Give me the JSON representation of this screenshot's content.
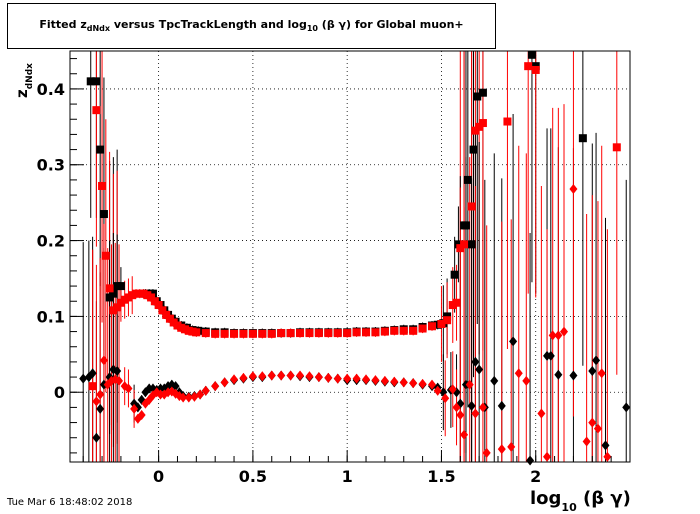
{
  "title": {
    "prefix": "Fitted  z",
    "subscript": "dNdx",
    "middle": "  versus TpcTrackLength and log",
    "log_sub": "10",
    "suffix": " (β γ) for Global muon+"
  },
  "timestamp": "Tue Mar  6 18:48:02 2018",
  "chart_data": {
    "type": "scatter",
    "title": "Fitted z_dNdx versus TpcTrackLength and log10(βγ) for Global muon+",
    "xlabel": "log10(β γ)",
    "ylabel": "z_dNdx",
    "xlim": [
      -0.47,
      2.5
    ],
    "ylim": [
      -0.092,
      0.45
    ],
    "x_ticks": [
      0,
      0.5,
      1,
      1.5,
      2
    ],
    "x_tick_labels": [
      "0",
      "0.5",
      "1",
      "1.5",
      "2"
    ],
    "y_ticks": [
      0,
      0.1,
      0.2,
      0.3,
      0.4
    ],
    "y_tick_labels": [
      "0",
      "0.1",
      "0.2",
      "0.3",
      "0.4"
    ],
    "grid": true,
    "colors": {
      "black": "#000000",
      "red": "#ff0000"
    },
    "series": [
      {
        "marker": "square",
        "color": "#000000",
        "points": [
          [
            -0.36,
            0.41
          ],
          [
            -0.33,
            0.41
          ],
          [
            -0.31,
            0.32
          ],
          [
            -0.29,
            0.235
          ],
          [
            -0.26,
            0.125
          ],
          [
            -0.24,
            0.13
          ],
          [
            -0.22,
            0.14
          ],
          [
            -0.2,
            0.14
          ],
          [
            -0.07,
            0.13
          ],
          [
            -0.05,
            0.13
          ],
          [
            -0.03,
            0.13
          ],
          [
            -0.01,
            0.12
          ],
          [
            0.01,
            0.115
          ],
          [
            0.03,
            0.108
          ],
          [
            0.05,
            0.102
          ],
          [
            0.07,
            0.097
          ],
          [
            0.09,
            0.093
          ],
          [
            0.12,
            0.088
          ],
          [
            0.15,
            0.085
          ],
          [
            0.18,
            0.082
          ],
          [
            0.21,
            0.081
          ],
          [
            0.25,
            0.08
          ],
          [
            0.3,
            0.079
          ],
          [
            0.35,
            0.079
          ],
          [
            0.4,
            0.078
          ],
          [
            0.45,
            0.078
          ],
          [
            0.5,
            0.078
          ],
          [
            0.55,
            0.078
          ],
          [
            0.6,
            0.078
          ],
          [
            0.65,
            0.078
          ],
          [
            0.7,
            0.078
          ],
          [
            0.75,
            0.079
          ],
          [
            0.8,
            0.079
          ],
          [
            0.85,
            0.079
          ],
          [
            0.9,
            0.079
          ],
          [
            0.95,
            0.079
          ],
          [
            1.0,
            0.079
          ],
          [
            1.05,
            0.08
          ],
          [
            1.1,
            0.08
          ],
          [
            1.15,
            0.08
          ],
          [
            1.2,
            0.081
          ],
          [
            1.25,
            0.082
          ],
          [
            1.3,
            0.083
          ],
          [
            1.35,
            0.083
          ],
          [
            1.4,
            0.086
          ],
          [
            1.45,
            0.088
          ],
          [
            1.48,
            0.089
          ],
          [
            1.51,
            0.091
          ],
          [
            1.53,
            0.1
          ],
          [
            1.57,
            0.155
          ],
          [
            1.59,
            0.195
          ],
          [
            1.62,
            0.22
          ],
          [
            1.63,
            0.22
          ],
          [
            1.64,
            0.28
          ],
          [
            1.66,
            0.195
          ],
          [
            1.67,
            0.32
          ],
          [
            1.69,
            0.39
          ],
          [
            1.72,
            0.395
          ],
          [
            1.98,
            0.445
          ],
          [
            2.0,
            0.43
          ],
          [
            2.25,
            0.335
          ]
        ]
      },
      {
        "marker": "square",
        "color": "#ff0000",
        "points": [
          [
            -0.35,
            0.008
          ],
          [
            -0.33,
            0.372
          ],
          [
            -0.3,
            0.272
          ],
          [
            -0.28,
            0.18
          ],
          [
            -0.26,
            0.137
          ],
          [
            -0.24,
            0.108
          ],
          [
            -0.22,
            0.112
          ],
          [
            -0.2,
            0.118
          ],
          [
            -0.18,
            0.122
          ],
          [
            -0.16,
            0.125
          ],
          [
            -0.14,
            0.128
          ],
          [
            -0.12,
            0.13
          ],
          [
            -0.1,
            0.13
          ],
          [
            -0.08,
            0.13
          ],
          [
            -0.06,
            0.128
          ],
          [
            -0.04,
            0.125
          ],
          [
            -0.02,
            0.12
          ],
          [
            0.0,
            0.115
          ],
          [
            0.02,
            0.108
          ],
          [
            0.04,
            0.102
          ],
          [
            0.06,
            0.097
          ],
          [
            0.08,
            0.092
          ],
          [
            0.1,
            0.088
          ],
          [
            0.12,
            0.085
          ],
          [
            0.14,
            0.083
          ],
          [
            0.16,
            0.081
          ],
          [
            0.18,
            0.08
          ],
          [
            0.2,
            0.079
          ],
          [
            0.25,
            0.078
          ],
          [
            0.3,
            0.077
          ],
          [
            0.35,
            0.077
          ],
          [
            0.4,
            0.077
          ],
          [
            0.45,
            0.077
          ],
          [
            0.5,
            0.077
          ],
          [
            0.55,
            0.077
          ],
          [
            0.6,
            0.077
          ],
          [
            0.65,
            0.078
          ],
          [
            0.7,
            0.078
          ],
          [
            0.75,
            0.078
          ],
          [
            0.8,
            0.078
          ],
          [
            0.85,
            0.078
          ],
          [
            0.9,
            0.078
          ],
          [
            0.95,
            0.078
          ],
          [
            1.0,
            0.078
          ],
          [
            1.05,
            0.079
          ],
          [
            1.1,
            0.079
          ],
          [
            1.15,
            0.079
          ],
          [
            1.2,
            0.08
          ],
          [
            1.25,
            0.081
          ],
          [
            1.3,
            0.081
          ],
          [
            1.35,
            0.081
          ],
          [
            1.4,
            0.084
          ],
          [
            1.45,
            0.087
          ],
          [
            1.5,
            0.09
          ],
          [
            1.53,
            0.095
          ],
          [
            1.56,
            0.115
          ],
          [
            1.58,
            0.118
          ],
          [
            1.6,
            0.19
          ],
          [
            1.62,
            0.195
          ],
          [
            1.66,
            0.245
          ],
          [
            1.68,
            0.345
          ],
          [
            1.7,
            0.35
          ],
          [
            1.72,
            0.355
          ],
          [
            1.85,
            0.357
          ],
          [
            1.96,
            0.43
          ],
          [
            2.0,
            0.425
          ],
          [
            2.43,
            0.323
          ]
        ]
      },
      {
        "marker": "diamond",
        "color": "#000000",
        "points": [
          [
            -0.4,
            0.018
          ],
          [
            -0.37,
            0.02
          ],
          [
            -0.35,
            0.025
          ],
          [
            -0.33,
            -0.06
          ],
          [
            -0.31,
            -0.022
          ],
          [
            -0.29,
            0.01
          ],
          [
            -0.26,
            0.02
          ],
          [
            -0.24,
            0.03
          ],
          [
            -0.22,
            0.028
          ],
          [
            -0.13,
            -0.015
          ],
          [
            -0.11,
            -0.02
          ],
          [
            -0.09,
            -0.01
          ],
          [
            -0.07,
            0.0
          ],
          [
            -0.05,
            0.005
          ],
          [
            -0.03,
            0.005
          ],
          [
            -0.01,
            0.003
          ],
          [
            0.01,
            0.005
          ],
          [
            0.03,
            0.005
          ],
          [
            0.05,
            0.008
          ],
          [
            0.07,
            0.01
          ],
          [
            0.09,
            0.008
          ],
          [
            0.11,
            0.0
          ],
          [
            0.13,
            -0.005
          ],
          [
            0.16,
            -0.006
          ],
          [
            0.19,
            -0.005
          ],
          [
            0.22,
            -0.003
          ],
          [
            0.25,
            0.002
          ],
          [
            0.3,
            0.008
          ],
          [
            0.35,
            0.013
          ],
          [
            0.4,
            0.016
          ],
          [
            0.45,
            0.018
          ],
          [
            0.5,
            0.02
          ],
          [
            0.55,
            0.02
          ],
          [
            0.6,
            0.022
          ],
          [
            0.65,
            0.022
          ],
          [
            0.7,
            0.022
          ],
          [
            0.75,
            0.021
          ],
          [
            0.8,
            0.02
          ],
          [
            0.85,
            0.02
          ],
          [
            0.9,
            0.019
          ],
          [
            0.95,
            0.018
          ],
          [
            1.0,
            0.016
          ],
          [
            1.05,
            0.016
          ],
          [
            1.1,
            0.016
          ],
          [
            1.15,
            0.015
          ],
          [
            1.2,
            0.014
          ],
          [
            1.25,
            0.013
          ],
          [
            1.3,
            0.013
          ],
          [
            1.35,
            0.012
          ],
          [
            1.4,
            0.01
          ],
          [
            1.45,
            0.008
          ],
          [
            1.48,
            0.006
          ],
          [
            1.51,
            0.0
          ],
          [
            1.55,
            0.003
          ],
          [
            1.58,
            0.0
          ],
          [
            1.6,
            -0.015
          ],
          [
            1.63,
            0.01
          ],
          [
            1.66,
            -0.018
          ],
          [
            1.68,
            0.04
          ],
          [
            1.7,
            0.03
          ],
          [
            1.73,
            -0.02
          ],
          [
            1.78,
            0.015
          ],
          [
            1.82,
            -0.018
          ],
          [
            1.88,
            0.067
          ],
          [
            1.97,
            -0.09
          ],
          [
            2.06,
            0.048
          ],
          [
            2.08,
            0.048
          ],
          [
            2.12,
            0.023
          ],
          [
            2.2,
            0.022
          ],
          [
            2.3,
            0.028
          ],
          [
            2.32,
            0.042
          ],
          [
            2.37,
            -0.07
          ],
          [
            2.48,
            -0.02
          ]
        ]
      },
      {
        "marker": "diamond",
        "color": "#ff0000",
        "points": [
          [
            -0.35,
            0.008
          ],
          [
            -0.33,
            -0.012
          ],
          [
            -0.31,
            -0.003
          ],
          [
            -0.29,
            0.042
          ],
          [
            -0.27,
            0.01
          ],
          [
            -0.25,
            0.015
          ],
          [
            -0.23,
            0.017
          ],
          [
            -0.21,
            0.015
          ],
          [
            -0.18,
            0.008
          ],
          [
            -0.16,
            0.005
          ],
          [
            -0.13,
            -0.022
          ],
          [
            -0.11,
            -0.035
          ],
          [
            -0.09,
            -0.03
          ],
          [
            -0.07,
            -0.015
          ],
          [
            -0.05,
            -0.01
          ],
          [
            -0.03,
            -0.004
          ],
          [
            -0.01,
            0.0
          ],
          [
            0.01,
            -0.003
          ],
          [
            0.03,
            -0.003
          ],
          [
            0.05,
            0.0
          ],
          [
            0.07,
            0.001
          ],
          [
            0.09,
            -0.002
          ],
          [
            0.11,
            -0.005
          ],
          [
            0.13,
            -0.007
          ],
          [
            0.16,
            -0.007
          ],
          [
            0.19,
            -0.006
          ],
          [
            0.22,
            -0.003
          ],
          [
            0.25,
            0.002
          ],
          [
            0.3,
            0.008
          ],
          [
            0.35,
            0.013
          ],
          [
            0.4,
            0.017
          ],
          [
            0.45,
            0.019
          ],
          [
            0.5,
            0.021
          ],
          [
            0.55,
            0.021
          ],
          [
            0.6,
            0.022
          ],
          [
            0.65,
            0.022
          ],
          [
            0.7,
            0.022
          ],
          [
            0.75,
            0.022
          ],
          [
            0.8,
            0.021
          ],
          [
            0.85,
            0.02
          ],
          [
            0.9,
            0.019
          ],
          [
            0.95,
            0.018
          ],
          [
            1.0,
            0.018
          ],
          [
            1.05,
            0.018
          ],
          [
            1.1,
            0.017
          ],
          [
            1.15,
            0.016
          ],
          [
            1.2,
            0.015
          ],
          [
            1.25,
            0.014
          ],
          [
            1.3,
            0.013
          ],
          [
            1.35,
            0.012
          ],
          [
            1.4,
            0.011
          ],
          [
            1.45,
            0.01
          ],
          [
            1.48,
            0.002
          ],
          [
            1.52,
            -0.008
          ],
          [
            1.56,
            0.004
          ],
          [
            1.58,
            -0.02
          ],
          [
            1.6,
            -0.03
          ],
          [
            1.62,
            -0.056
          ],
          [
            1.65,
            0.01
          ],
          [
            1.68,
            -0.028
          ],
          [
            1.72,
            -0.02
          ],
          [
            1.74,
            -0.08
          ],
          [
            1.82,
            -0.075
          ],
          [
            1.87,
            -0.072
          ],
          [
            1.91,
            0.025
          ],
          [
            1.95,
            0.015
          ],
          [
            2.03,
            -0.028
          ],
          [
            2.06,
            -0.085
          ],
          [
            2.09,
            0.075
          ],
          [
            2.12,
            0.075
          ],
          [
            2.15,
            0.08
          ],
          [
            2.2,
            0.268
          ],
          [
            2.27,
            -0.065
          ],
          [
            2.3,
            -0.04
          ],
          [
            2.33,
            -0.048
          ],
          [
            2.35,
            0.025
          ],
          [
            2.38,
            -0.085
          ]
        ]
      }
    ]
  }
}
